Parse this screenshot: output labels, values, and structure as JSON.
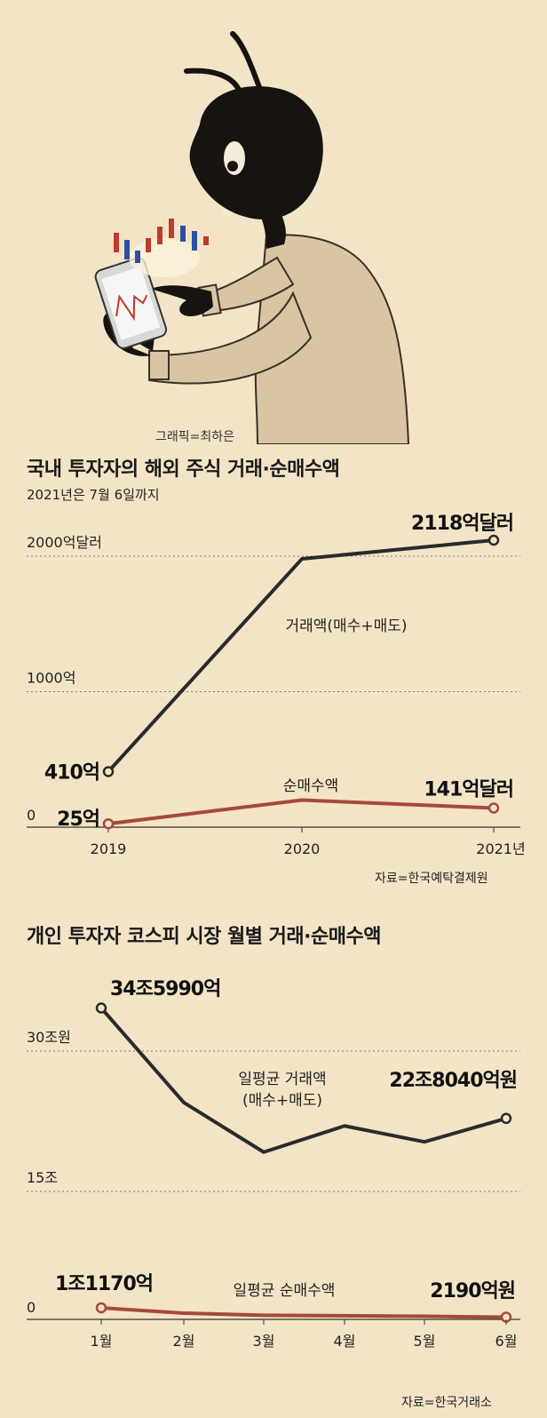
{
  "illustration": {
    "credit": "그래픽=최하은"
  },
  "colors": {
    "background": "#f4e4c7",
    "volume_line": "#2b2b2b",
    "net_line": "#a44a3c",
    "grid": "#777777"
  },
  "chart_data": [
    {
      "type": "line",
      "title": "국내 투자자의 해외 주식 거래·순매수액",
      "subtitle": "2021년은 7월 6일까지",
      "categories": [
        "2019",
        "2020",
        "2021년"
      ],
      "ytick_labels": [
        "2000억달러",
        "1000억",
        "0"
      ],
      "yticks": [
        2000,
        1000,
        0
      ],
      "ylim": [
        0,
        2400
      ],
      "series": [
        {
          "name": "거래액(매수+매도)",
          "values": [
            410,
            1980,
            2118
          ],
          "start_label": "410억",
          "end_label": "2118억달러"
        },
        {
          "name": "순매수액",
          "values": [
            25,
            200,
            141
          ],
          "start_label": "25억",
          "end_label": "141억달러"
        }
      ],
      "source": "자료=한국예탁결제원"
    },
    {
      "type": "line",
      "title": "개인 투자자 코스피 시장 월별 거래·순매수액",
      "categories": [
        "1월",
        "2월",
        "3월",
        "4월",
        "5월",
        "6월"
      ],
      "panels": [
        {
          "name": "일평균 거래액",
          "label_line1": "일평균 거래액",
          "label_line2": "(매수+매도)",
          "ytick_labels": [
            "30조원",
            "15조"
          ],
          "yticks": [
            30,
            15
          ],
          "unit": "조원",
          "values": [
            34.599,
            24.5,
            19.2,
            22.0,
            20.3,
            22.804
          ],
          "start_label": "34조5990억",
          "end_label": "22조8040억원"
        },
        {
          "name": "일평균 순매수액",
          "ytick_labels": [
            "0"
          ],
          "yticks": [
            0
          ],
          "unit": "억원",
          "values": [
            11170,
            6000,
            4000,
            3500,
            3000,
            2190
          ],
          "start_label": "1조1170억",
          "end_label": "2190억원"
        }
      ],
      "source": "자료=한국거래소"
    }
  ]
}
